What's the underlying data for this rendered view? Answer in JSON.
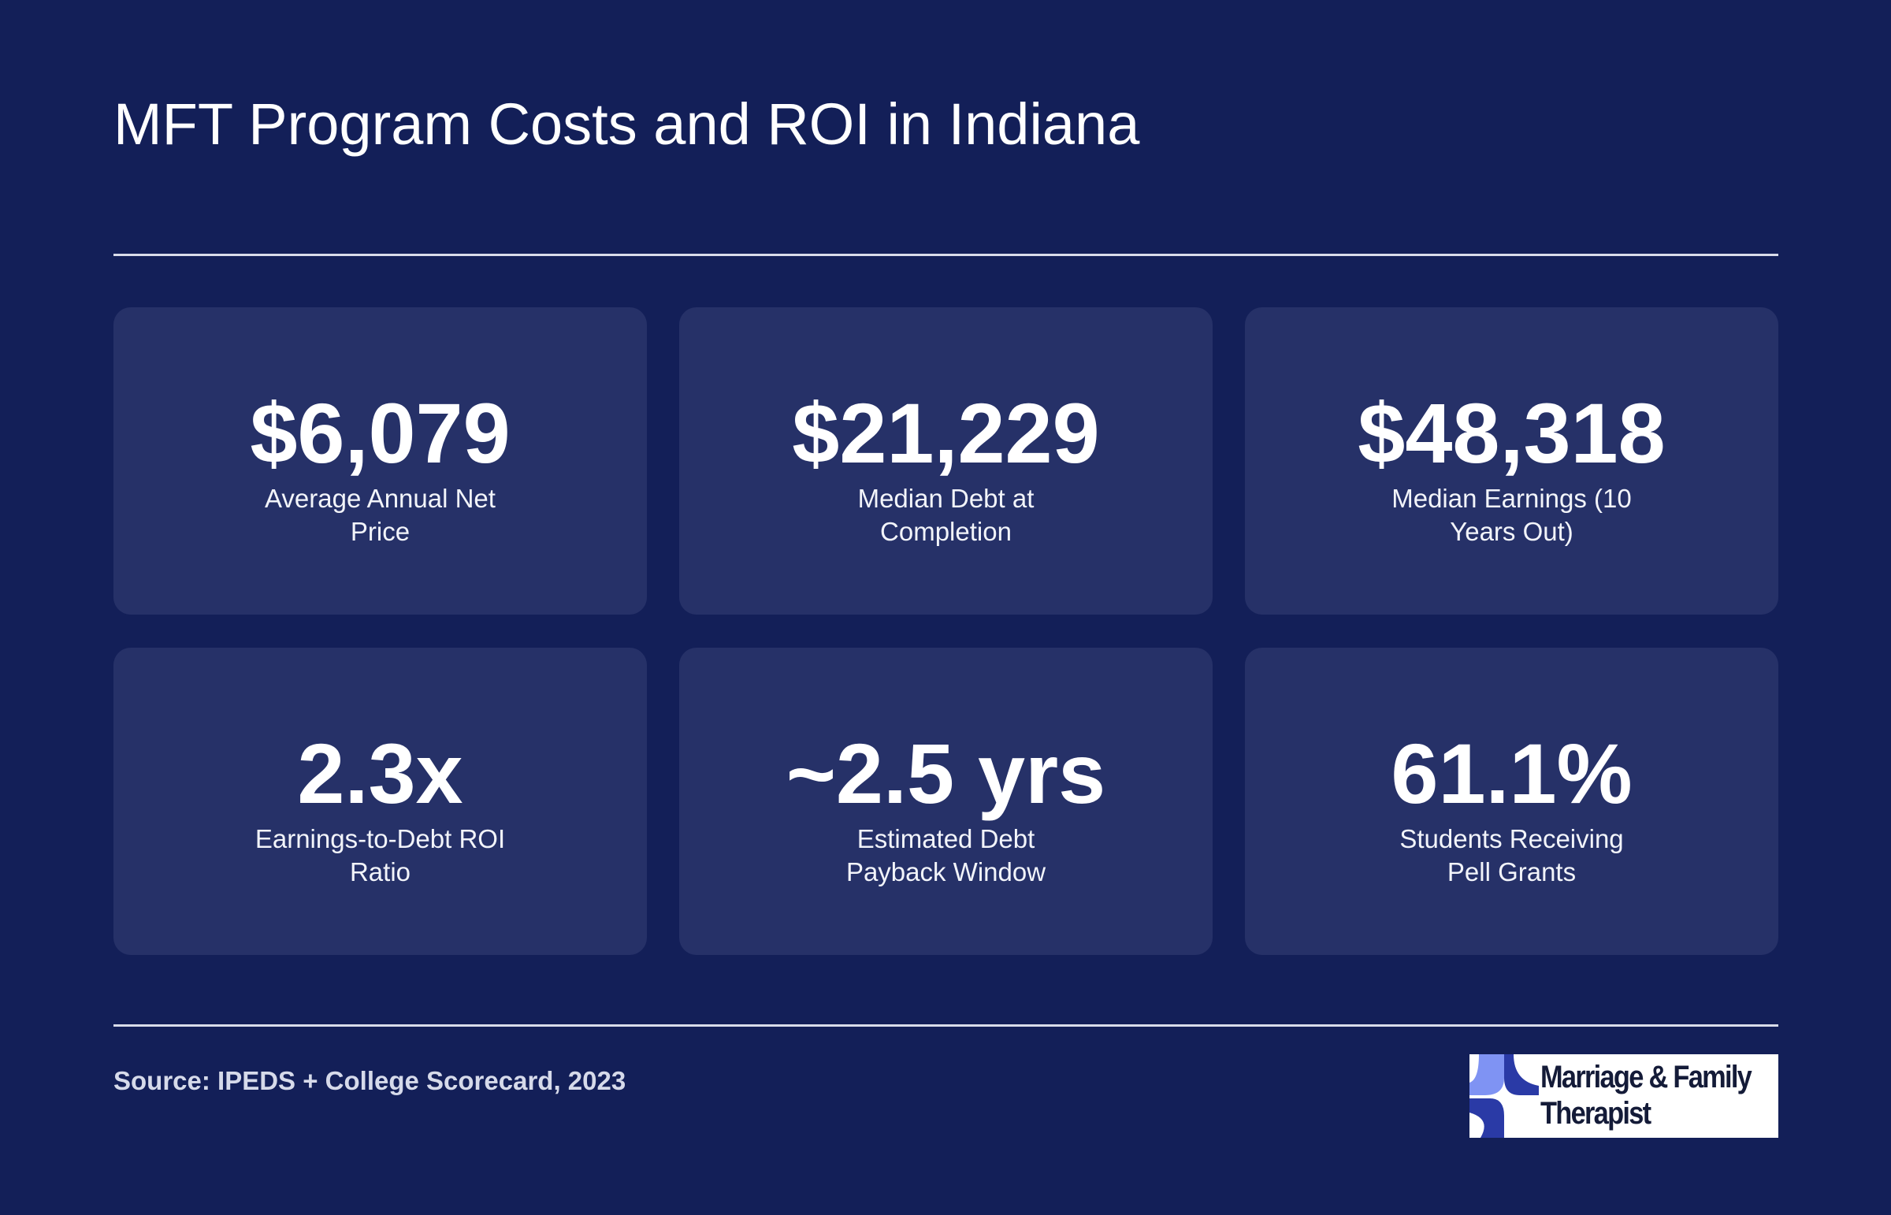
{
  "header": {
    "title": "MFT Program Costs and ROI in Indiana"
  },
  "cards": [
    {
      "value": "$6,079",
      "label": "Average Annual Net Price"
    },
    {
      "value": "$21,229",
      "label": "Median Debt at Completion"
    },
    {
      "value": "$48,318",
      "label": "Median Earnings (10 Years Out)"
    },
    {
      "value": "2.3x",
      "label": "Earnings-to-Debt ROI Ratio"
    },
    {
      "value": "~2.5 yrs",
      "label": "Estimated Debt Payback Window"
    },
    {
      "value": "61.1%",
      "label": "Students Receiving Pell Grants"
    }
  ],
  "footer": {
    "source": "Source: IPEDS + College Scorecard, 2023",
    "logo_line1": "Marriage & Family",
    "logo_line2": "Therapist"
  },
  "colors": {
    "background": "#131f58",
    "card": "#263168",
    "logo_light_blue": "#7f93f3",
    "logo_dark_blue": "#2a3aa6"
  }
}
